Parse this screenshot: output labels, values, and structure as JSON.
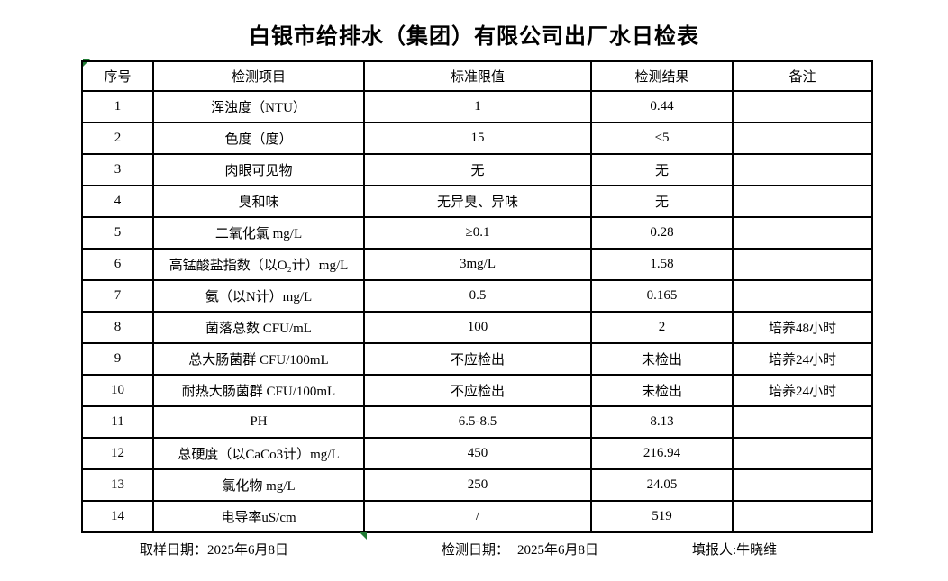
{
  "title": "白银市给排水（集团）有限公司出厂水日检表",
  "table": {
    "headers": [
      "序号",
      "检测项目",
      "标准限值",
      "检测结果",
      "备注"
    ],
    "rows": [
      [
        "1",
        "浑浊度（NTU）",
        "1",
        "0.44",
        ""
      ],
      [
        "2",
        "色度（度）",
        "15",
        "<5",
        ""
      ],
      [
        "3",
        "肉眼可见物",
        "无",
        "无",
        ""
      ],
      [
        "4",
        "臭和味",
        "无异臭、异味",
        "无",
        ""
      ],
      [
        "5",
        "二氧化氯 mg/L",
        "≥0.1",
        "0.28",
        ""
      ],
      [
        "6",
        "高锰酸盐指数（以O₂计）mg/L",
        "3mg/L",
        "1.58",
        ""
      ],
      [
        "7",
        "氨（以N计）mg/L",
        "0.5",
        "0.165",
        ""
      ],
      [
        "8",
        "菌落总数 CFU/mL",
        "100",
        "2",
        "培养48小时"
      ],
      [
        "9",
        "总大肠菌群 CFU/100mL",
        "不应检出",
        "未检出",
        "培养24小时"
      ],
      [
        "10",
        "耐热大肠菌群 CFU/100mL",
        "不应检出",
        "未检出",
        "培养24小时"
      ],
      [
        "11",
        "PH",
        "6.5-8.5",
        "8.13",
        ""
      ],
      [
        "12",
        "总硬度（以CaCo3计）mg/L",
        "450",
        "216.94",
        ""
      ],
      [
        "13",
        "氯化物 mg/L",
        "250",
        "24.05",
        ""
      ],
      [
        "14",
        "电导率uS/cm",
        "/",
        "519",
        ""
      ]
    ]
  },
  "footer": {
    "sampling_date_label": "取样日期：",
    "sampling_date": "2025年6月8日",
    "test_date_label": "检测日期：",
    "test_date": "2025年6月8日",
    "reporter_label": "填报人:",
    "reporter": "牛晓维"
  },
  "markers": {
    "corner_marker": "green-corner-triangle-icon",
    "bottom_marker": "green-bottom-triangle-icon"
  },
  "colors": {
    "marker_green": "#1f7a33",
    "border": "#000000",
    "text": "#000000",
    "background": "#ffffff"
  }
}
